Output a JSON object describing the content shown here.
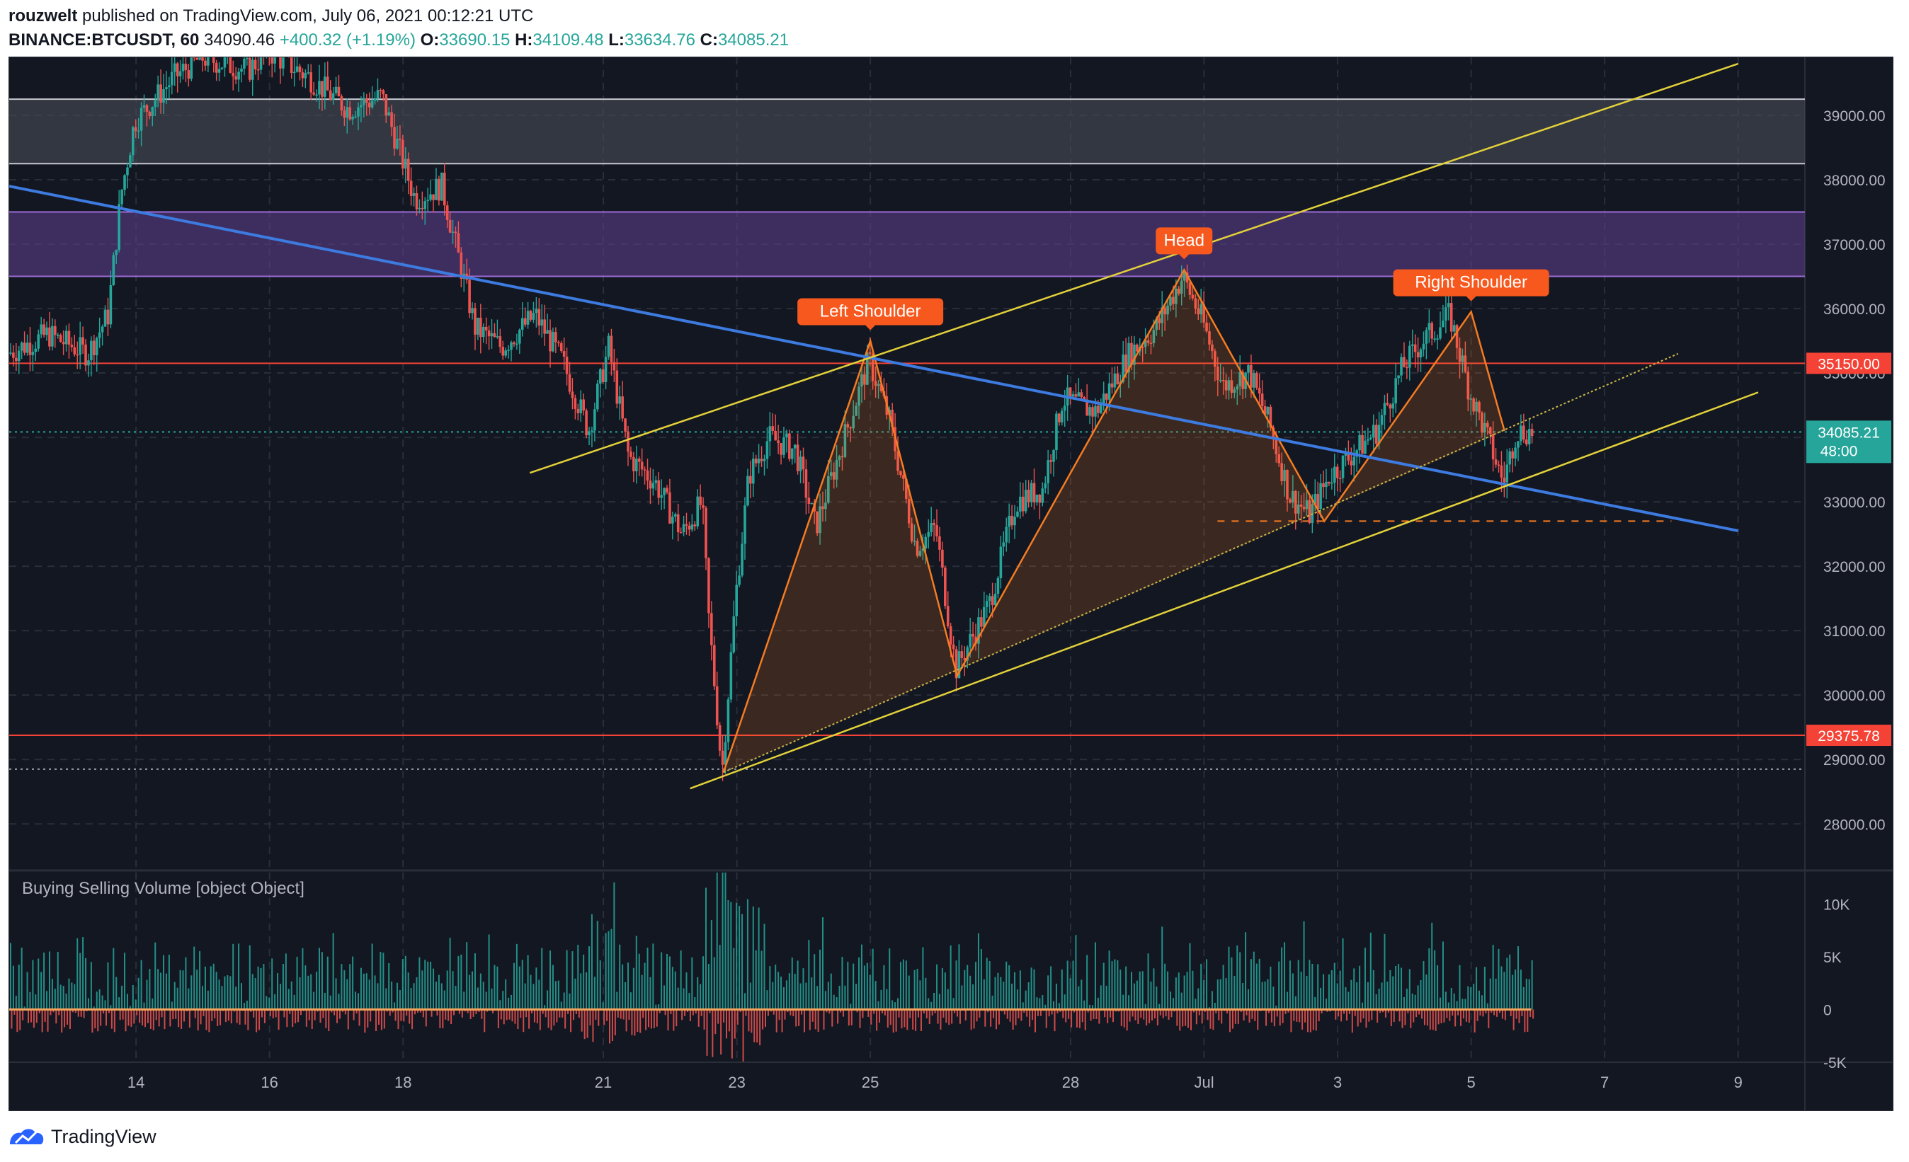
{
  "header": {
    "author": "rouzwelt",
    "published_text": "published on TradingView.com, July 06, 2021 00:12:21 UTC",
    "symbol": "BINANCE:BTCUSDT, 60",
    "last": "34090.46",
    "change": "+400.32 (+1.19%)",
    "o_label": "O:",
    "o_value": "33690.15",
    "h_label": "H:",
    "h_value": "34109.48",
    "l_label": "L:",
    "l_value": "33634.76",
    "c_label": "C:",
    "c_value": "34085.21"
  },
  "footer": {
    "brand": "TradingView",
    "logo_icon": "tradingview-logo-icon"
  },
  "colors": {
    "background": "#131722",
    "grid": "#2a2e39",
    "up": "#26a69a",
    "down": "#ef5350",
    "trend_blue": "#3d7be0",
    "channel_yellow": "#e3d13a",
    "pattern_orange": "#f57c22",
    "support_red": "#f44336",
    "zone_purple": "#5b3d8a",
    "zone_gray": "#4a4d59",
    "text": "#b2b5be",
    "label_orange": "#f7581d"
  },
  "chart_data": {
    "type": "candlestick",
    "title": "",
    "x_ticks": [
      "14",
      "16",
      "18",
      "21",
      "23",
      "25",
      "28",
      "Jul",
      "3",
      "5",
      "7",
      "9"
    ],
    "x_tick_days": [
      14,
      16,
      18,
      21,
      23,
      25,
      28,
      30,
      32,
      34,
      36,
      38
    ],
    "x_range_days": [
      12.1,
      39
    ],
    "y_ticks": [
      "28000.00",
      "29000.00",
      "30000.00",
      "31000.00",
      "32000.00",
      "33000.00",
      "34000.00",
      "35000.00",
      "36000.00",
      "37000.00",
      "38000.00",
      "39000.00"
    ],
    "y_range": [
      27300,
      39900
    ],
    "price_path": [
      [
        12.1,
        35300
      ],
      [
        12.7,
        35600
      ],
      [
        13.3,
        35300
      ],
      [
        13.6,
        35900
      ],
      [
        13.8,
        37800
      ],
      [
        14.0,
        38900
      ],
      [
        14.6,
        39600
      ],
      [
        15.0,
        39900
      ],
      [
        15.7,
        39700
      ],
      [
        16.0,
        40000
      ],
      [
        16.6,
        39600
      ],
      [
        17.2,
        39100
      ],
      [
        17.7,
        39300
      ],
      [
        18.2,
        37700
      ],
      [
        18.6,
        37900
      ],
      [
        19.1,
        35700
      ],
      [
        19.5,
        35400
      ],
      [
        20.0,
        35900
      ],
      [
        20.4,
        35200
      ],
      [
        20.8,
        34100
      ],
      [
        21.1,
        35400
      ],
      [
        21.4,
        33700
      ],
      [
        21.8,
        33300
      ],
      [
        22.2,
        32500
      ],
      [
        22.5,
        33000
      ],
      [
        22.6,
        31200
      ],
      [
        22.8,
        28800
      ],
      [
        23.0,
        31500
      ],
      [
        23.2,
        33400
      ],
      [
        23.5,
        34000
      ],
      [
        23.9,
        33800
      ],
      [
        24.2,
        32600
      ],
      [
        24.6,
        33900
      ],
      [
        25.0,
        35200
      ],
      [
        25.3,
        34300
      ],
      [
        25.7,
        32300
      ],
      [
        26.0,
        32600
      ],
      [
        26.3,
        30400
      ],
      [
        26.8,
        31400
      ],
      [
        27.2,
        33000
      ],
      [
        27.6,
        33200
      ],
      [
        27.9,
        34600
      ],
      [
        28.4,
        34400
      ],
      [
        28.9,
        35300
      ],
      [
        29.3,
        35700
      ],
      [
        29.7,
        36500
      ],
      [
        30.0,
        35800
      ],
      [
        30.3,
        34800
      ],
      [
        30.7,
        35000
      ],
      [
        31.0,
        34200
      ],
      [
        31.3,
        33100
      ],
      [
        31.6,
        32800
      ],
      [
        31.9,
        33400
      ],
      [
        32.3,
        33800
      ],
      [
        32.6,
        34100
      ],
      [
        33.0,
        35100
      ],
      [
        33.3,
        35500
      ],
      [
        33.7,
        35900
      ],
      [
        34.0,
        34700
      ],
      [
        34.3,
        33900
      ],
      [
        34.5,
        33300
      ],
      [
        34.7,
        34100
      ],
      [
        34.9,
        34085
      ]
    ],
    "volume_ylim": [
      -5000,
      13000
    ],
    "volume_ticks": [
      "10K",
      "5K",
      "0",
      "-5K"
    ],
    "volume_tick_values": [
      10000,
      5000,
      0,
      -5000
    ],
    "indicator_label": "Buying Selling Volume [object Object]",
    "horizontal_lines": [
      {
        "label": "35150.00",
        "value": 35150
      },
      {
        "label": "29375.78",
        "value": 29375.78
      }
    ],
    "last_price": {
      "label": "34085.21",
      "value": 34085.21,
      "countdown": "48:00"
    },
    "zones": [
      {
        "name": "upper-gray-zone",
        "from": 38250,
        "to": 39250
      },
      {
        "name": "purple-resistance-zone",
        "from": 36500,
        "to": 37500
      }
    ],
    "trendlines": [
      {
        "name": "descending-trendline",
        "points": [
          [
            12.1,
            37900
          ],
          [
            38.0,
            32550
          ]
        ]
      },
      {
        "name": "channel-upper",
        "points": [
          [
            19.9,
            33450
          ],
          [
            38.0,
            39800
          ]
        ]
      },
      {
        "name": "channel-lower",
        "points": [
          [
            22.3,
            28550
          ],
          [
            38.3,
            34700
          ]
        ]
      },
      {
        "name": "neckline",
        "points": [
          [
            22.8,
            28800
          ],
          [
            37.1,
            35300
          ]
        ]
      }
    ],
    "dotted_levels": [
      {
        "name": "low-dotted-level",
        "value": 28850
      },
      {
        "name": "neckline-break-level",
        "value": 32700,
        "from": 30.2,
        "to": 37.0
      }
    ],
    "pattern": {
      "points": [
        [
          22.8,
          28800
        ],
        [
          25.0,
          35500
        ],
        [
          26.3,
          30300
        ],
        [
          29.7,
          36600
        ],
        [
          31.8,
          32700
        ],
        [
          34.0,
          35950
        ],
        [
          34.5,
          34100
        ]
      ],
      "labels": [
        {
          "text": "Left Shoulder",
          "x": 25.0,
          "y": 35500
        },
        {
          "text": "Head",
          "x": 29.7,
          "y": 36600
        },
        {
          "text": "Right Shoulder",
          "x": 34.0,
          "y": 35950
        }
      ]
    }
  }
}
